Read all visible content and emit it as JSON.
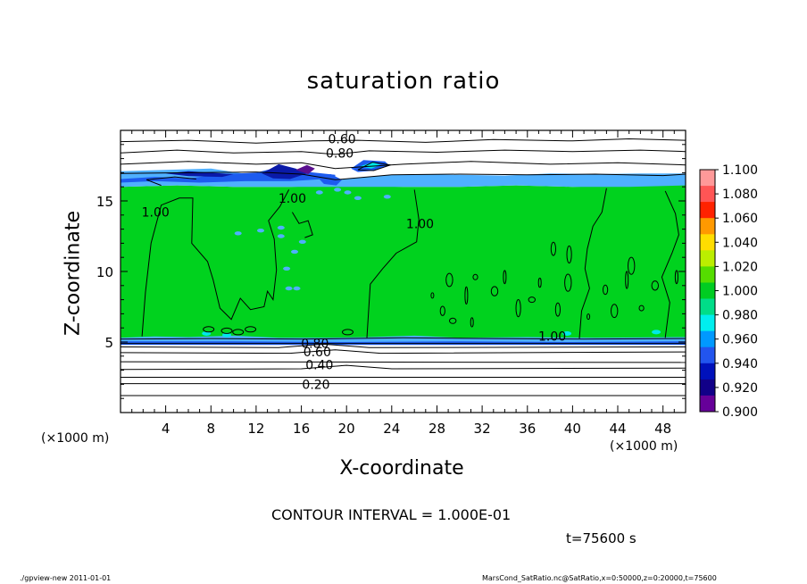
{
  "chart_data": {
    "type": "heatmap",
    "title": "saturation ratio",
    "xlabel": "X-coordinate",
    "ylabel": "Z-coordinate",
    "x_unit": "(×1000 m)",
    "y_unit": "(×1000 m)",
    "xlim": [
      0,
      50
    ],
    "ylim": [
      0,
      20
    ],
    "x_ticks": [
      4,
      8,
      12,
      16,
      20,
      24,
      28,
      32,
      36,
      40,
      44,
      48
    ],
    "y_ticks": [
      5,
      10,
      15
    ],
    "colorbar": {
      "range": [
        0.9,
        1.1
      ],
      "levels": [
        "1.100",
        "1.080",
        "1.060",
        "1.040",
        "1.020",
        "1.000",
        "0.980",
        "0.960",
        "0.940",
        "0.920",
        "0.900"
      ],
      "colors": [
        "#ff9999",
        "#ff5555",
        "#ff2200",
        "#ff9900",
        "#ffdd00",
        "#bbee00",
        "#55dd00",
        "#00cc22",
        "#00dd88",
        "#00eeee",
        "#0099ff",
        "#2255ee",
        "#0011bb",
        "#110088",
        "#660099"
      ]
    },
    "field_colors": {
      "green": "#00d21e",
      "light_blue": "#4fb0ff",
      "blue": "#1d5bef",
      "dark_blue": "#0a1aa8",
      "purple": "#5a0f8f",
      "cyan": "#00e8e8"
    },
    "contour_labels": [
      {
        "text": "0.60",
        "x": 19.6,
        "z": 19.4
      },
      {
        "text": "0.80",
        "x": 19.4,
        "z": 18.4
      },
      {
        "text": "1.00",
        "x": 15.2,
        "z": 15.2
      },
      {
        "text": "1.00",
        "x": 3.1,
        "z": 14.2
      },
      {
        "text": "1.00",
        "x": 26.5,
        "z": 13.4
      },
      {
        "text": "1.00",
        "x": 38.2,
        "z": 5.4
      },
      {
        "text": "0.80",
        "x": 17.2,
        "z": 4.9
      },
      {
        "text": "0.60",
        "x": 17.4,
        "z": 4.3
      },
      {
        "text": "0.40",
        "x": 17.6,
        "z": 3.4
      },
      {
        "text": "0.20",
        "x": 17.3,
        "z": 2.0
      }
    ],
    "contour_interval": "CONTOUR INTERVAL = 1.000E-01",
    "time": "t=75600  s"
  },
  "footer": {
    "left": "./gpview-new   2011-01-01",
    "right": "MarsCond_SatRatio.nc@SatRatio,x=0:50000,z=0:20000,t=75600"
  }
}
